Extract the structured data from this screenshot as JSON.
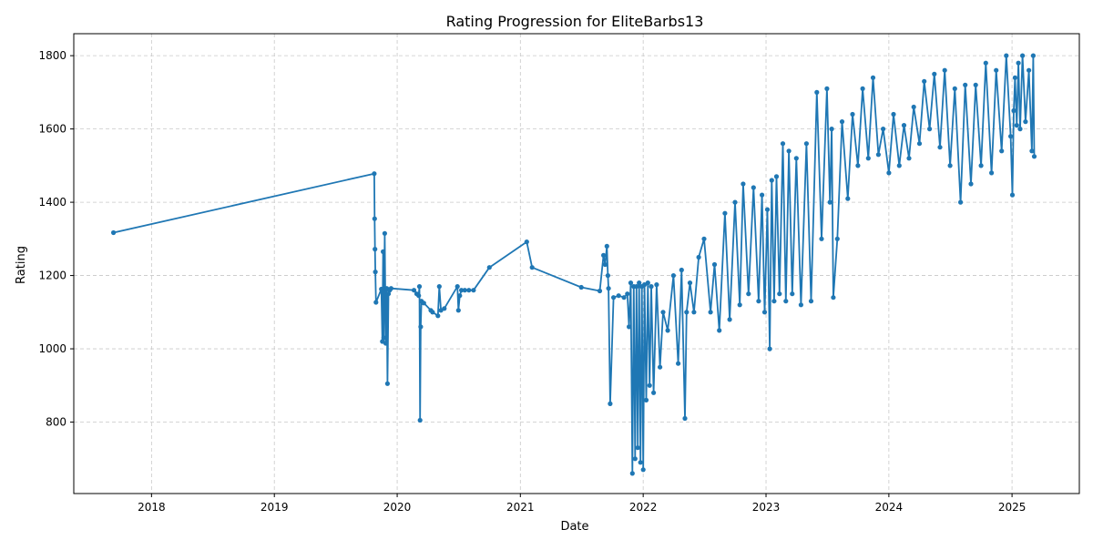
{
  "chart_data": {
    "type": "line",
    "title": "Rating Progression for EliteBarbs13",
    "xlabel": "Date",
    "ylabel": "Rating",
    "xlim": [
      "2017-05-15",
      "2025-07-20"
    ],
    "ylim": [
      605,
      1860
    ],
    "x_ticks": [
      "2018-01-01",
      "2019-01-01",
      "2020-01-01",
      "2021-01-01",
      "2022-01-01",
      "2023-01-01",
      "2024-01-01",
      "2025-01-01"
    ],
    "x_tick_labels": [
      "2018",
      "2019",
      "2020",
      "2021",
      "2022",
      "2023",
      "2024",
      "2025"
    ],
    "y_ticks": [
      800,
      1000,
      1200,
      1400,
      1600,
      1800
    ],
    "y_tick_labels": [
      "800",
      "1000",
      "1200",
      "1400",
      "1600",
      "1800"
    ],
    "grid": true,
    "marker": "circle",
    "colors": {
      "line": "#1f77b4",
      "grid": "#c8c8c8"
    },
    "series": [
      {
        "x": [
          "2017-09-10",
          "2019-10-25",
          "2019-10-26",
          "2019-10-27",
          "2019-10-28",
          "2019-10-30",
          "2019-11-15",
          "2019-11-18",
          "2019-11-20",
          "2019-11-22",
          "2019-11-25",
          "2019-11-28",
          "2019-12-01",
          "2019-12-03",
          "2019-12-06",
          "2019-12-10",
          "2019-12-14",
          "2020-02-20",
          "2020-02-28",
          "2020-03-05",
          "2020-03-07",
          "2020-03-09",
          "2020-03-11",
          "2020-03-13",
          "2020-03-20",
          "2020-04-10",
          "2020-04-15",
          "2020-05-01",
          "2020-05-05",
          "2020-05-10",
          "2020-05-20",
          "2020-06-28",
          "2020-07-01",
          "2020-07-05",
          "2020-07-10",
          "2020-07-20",
          "2020-08-01",
          "2020-08-15",
          "2020-10-01",
          "2021-01-20",
          "2021-02-05",
          "2021-07-01",
          "2021-08-25",
          "2021-09-05",
          "2021-09-10",
          "2021-09-15",
          "2021-09-18",
          "2021-09-20",
          "2021-09-25",
          "2021-10-05",
          "2021-10-20",
          "2021-11-05",
          "2021-11-15",
          "2021-11-20",
          "2021-11-25",
          "2021-11-30",
          "2021-12-04",
          "2021-12-08",
          "2021-12-12",
          "2021-12-16",
          "2021-12-20",
          "2021-12-24",
          "2021-12-28",
          "2022-01-01",
          "2022-01-05",
          "2022-01-10",
          "2022-01-15",
          "2022-01-20",
          "2022-01-25",
          "2022-02-01",
          "2022-02-10",
          "2022-02-20",
          "2022-03-01",
          "2022-03-15",
          "2022-04-01",
          "2022-04-15",
          "2022-04-25",
          "2022-05-05",
          "2022-05-10",
          "2022-05-20",
          "2022-06-01",
          "2022-06-15",
          "2022-07-01",
          "2022-07-20",
          "2022-08-01",
          "2022-08-15",
          "2022-09-01",
          "2022-09-15",
          "2022-10-01",
          "2022-10-15",
          "2022-10-25",
          "2022-11-10",
          "2022-11-25",
          "2022-12-10",
          "2022-12-20",
          "2022-12-28",
          "2023-01-05",
          "2023-01-12",
          "2023-01-18",
          "2023-01-25",
          "2023-02-01",
          "2023-02-10",
          "2023-02-20",
          "2023-03-01",
          "2023-03-10",
          "2023-03-20",
          "2023-04-01",
          "2023-04-15",
          "2023-05-01",
          "2023-05-15",
          "2023-06-01",
          "2023-06-15",
          "2023-07-01",
          "2023-07-10",
          "2023-07-15",
          "2023-07-20",
          "2023-08-01",
          "2023-08-15",
          "2023-09-01",
          "2023-09-15",
          "2023-10-01",
          "2023-10-15",
          "2023-11-01",
          "2023-11-15",
          "2023-12-01",
          "2023-12-15",
          "2024-01-01",
          "2024-01-15",
          "2024-02-01",
          "2024-02-15",
          "2024-03-01",
          "2024-03-15",
          "2024-04-01",
          "2024-04-15",
          "2024-05-01",
          "2024-05-15",
          "2024-06-01",
          "2024-06-15",
          "2024-07-01",
          "2024-07-15",
          "2024-08-01",
          "2024-08-15",
          "2024-09-01",
          "2024-09-15",
          "2024-10-01",
          "2024-10-15",
          "2024-11-01",
          "2024-11-15",
          "2024-12-01",
          "2024-12-15",
          "2024-12-28",
          "2025-01-02",
          "2025-01-06",
          "2025-01-10",
          "2025-01-15",
          "2025-01-20",
          "2025-01-25",
          "2025-02-01",
          "2025-02-10",
          "2025-02-20",
          "2025-03-01",
          "2025-03-05",
          "2025-03-08"
        ],
        "y": [
          1317,
          1478,
          1355,
          1272,
          1210,
          1127,
          1163,
          1020,
          1265,
          1030,
          1315,
          1015,
          1165,
          905,
          1150,
          1160,
          1165,
          1160,
          1150,
          1145,
          1170,
          805,
          1060,
          1130,
          1125,
          1105,
          1100,
          1090,
          1170,
          1105,
          1110,
          1170,
          1105,
          1145,
          1160,
          1160,
          1160,
          1160,
          1222,
          1292,
          1222,
          1168,
          1158,
          1255,
          1230,
          1280,
          1200,
          1165,
          850,
          1140,
          1145,
          1140,
          1150,
          1060,
          1180,
          660,
          1170,
          700,
          1170,
          730,
          1180,
          690,
          1170,
          670,
          1175,
          860,
          1180,
          900,
          1170,
          880,
          1175,
          950,
          1100,
          1050,
          1200,
          960,
          1215,
          810,
          1100,
          1180,
          1100,
          1250,
          1300,
          1100,
          1230,
          1050,
          1370,
          1080,
          1400,
          1120,
          1450,
          1150,
          1440,
          1130,
          1420,
          1100,
          1380,
          1000,
          1460,
          1130,
          1470,
          1150,
          1560,
          1130,
          1540,
          1150,
          1520,
          1120,
          1560,
          1130,
          1700,
          1300,
          1710,
          1400,
          1600,
          1140,
          1300,
          1620,
          1410,
          1640,
          1500,
          1710,
          1520,
          1740,
          1530,
          1600,
          1480,
          1640,
          1500,
          1610,
          1520,
          1660,
          1560,
          1730,
          1600,
          1750,
          1550,
          1760,
          1500,
          1710,
          1400,
          1720,
          1450,
          1720,
          1500,
          1780,
          1480,
          1760,
          1540,
          1800,
          1580,
          1420,
          1650,
          1740,
          1610,
          1780,
          1600,
          1800,
          1620,
          1760,
          1540,
          1800,
          1525
        ]
      }
    ]
  }
}
